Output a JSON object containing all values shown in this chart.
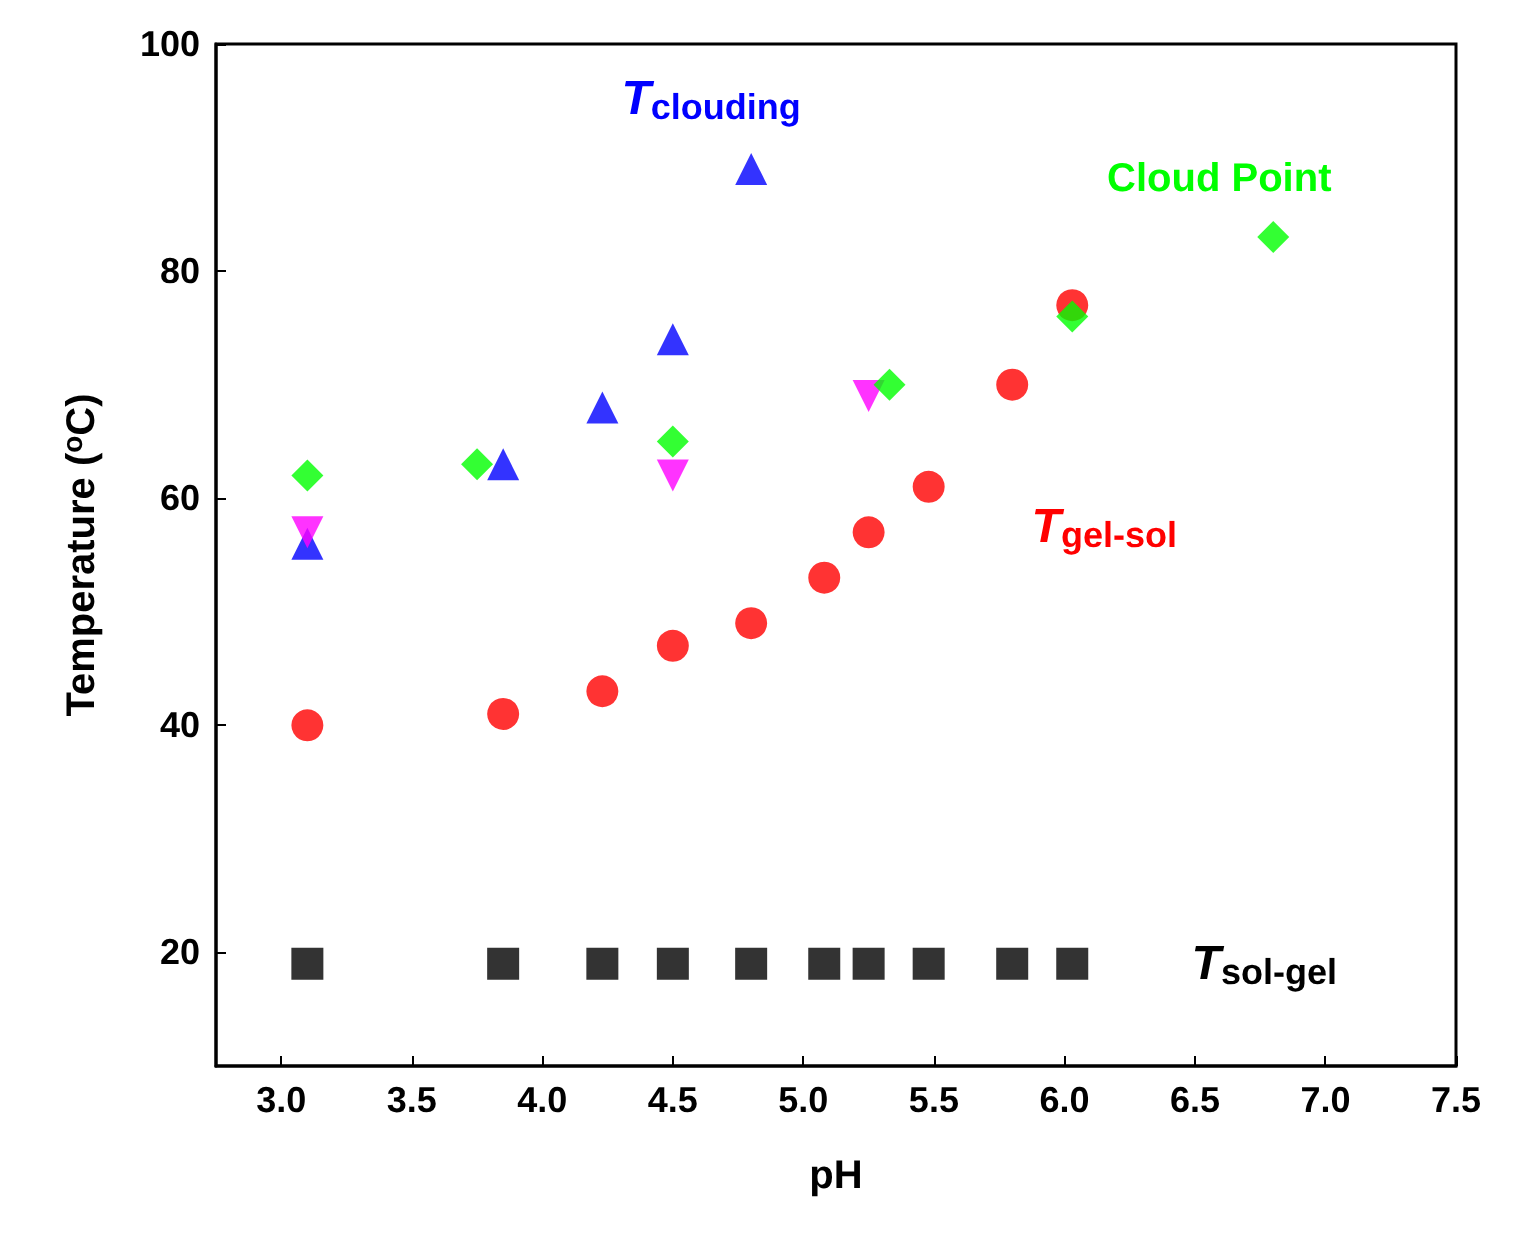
{
  "chart_data": {
    "type": "scatter",
    "xlabel": "pH",
    "ylabel": "Temperature ($^{o}$C)",
    "xlim": [
      2.75,
      7.5
    ],
    "ylim": [
      10,
      100
    ],
    "xticks": [
      {
        "value": 3,
        "label": "3.0"
      },
      {
        "value": 3.5,
        "label": "3.5"
      },
      {
        "value": 4,
        "label": "4.0"
      },
      {
        "value": 4.5,
        "label": "4.5"
      },
      {
        "value": 5,
        "label": "5.0"
      },
      {
        "value": 5.5,
        "label": "5.5"
      },
      {
        "value": 6,
        "label": "6.0"
      },
      {
        "value": 6.5,
        "label": "6.5"
      },
      {
        "value": 7,
        "label": "7.0"
      },
      {
        "value": 7.5,
        "label": "7.5"
      }
    ],
    "yticks": [
      20,
      40,
      60,
      80,
      100
    ],
    "grid": false,
    "legend": false,
    "series": [
      {
        "name": "T$_{sol-gel}$",
        "color": "#000000",
        "marker": "square",
        "x": [
          3.1,
          3.85,
          4.23,
          4.5,
          4.8,
          5.08,
          5.25,
          5.48,
          5.8,
          6.03
        ],
        "values": [
          19,
          19,
          19,
          19,
          19,
          19,
          19,
          19,
          19,
          19
        ]
      },
      {
        "name": "T$_{gel-sol}$",
        "color": "#ff0000",
        "marker": "circle",
        "x": [
          3.1,
          3.85,
          4.23,
          4.5,
          4.8,
          5.08,
          5.25,
          5.48,
          5.8,
          6.03
        ],
        "values": [
          40,
          41,
          43,
          47,
          49,
          53,
          57,
          61,
          70,
          77
        ]
      },
      {
        "name": "T$_{clouding}$",
        "color": "#0000ff",
        "marker": "triangle",
        "x": [
          3.1,
          3.85,
          4.23,
          4.5,
          4.8
        ],
        "values": [
          56,
          63,
          68,
          74,
          89
        ]
      },
      {
        "color": "#ff00ff",
        "marker": "triangle-down",
        "x": [
          3.1,
          4.5,
          5.25
        ],
        "values": [
          57,
          62,
          69
        ]
      },
      {
        "name": "Cloud Point",
        "color": "#00ff00",
        "marker": "diamond",
        "x": [
          3.1,
          3.75,
          4.5,
          5.33,
          6.03,
          6.8
        ],
        "values": [
          62,
          63,
          65,
          70,
          76,
          83
        ]
      }
    ]
  }
}
